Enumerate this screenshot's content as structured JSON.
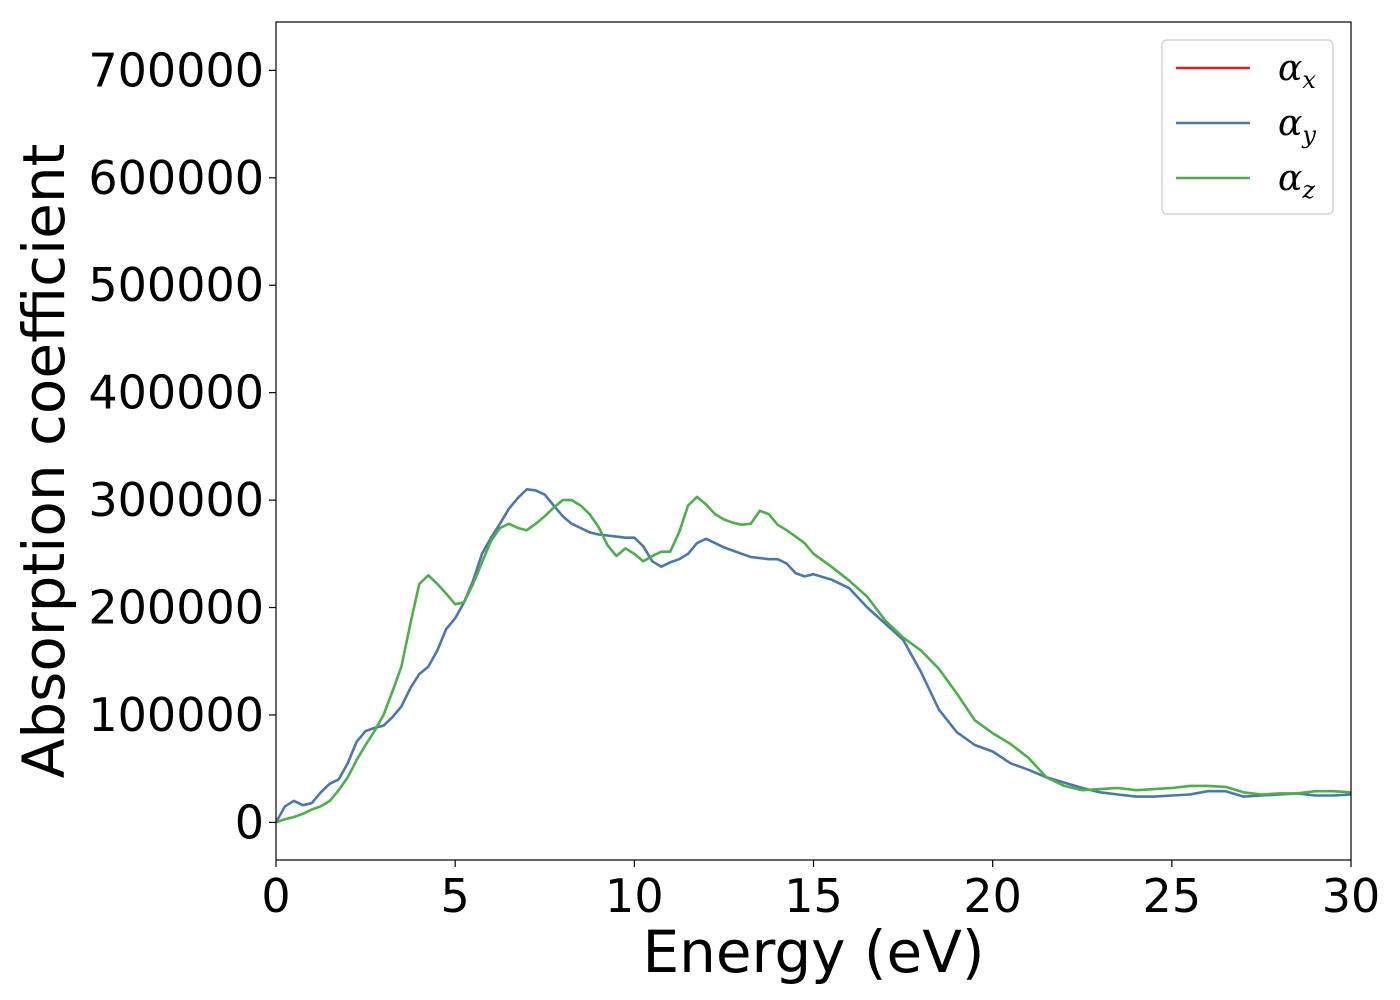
{
  "chart_data": {
    "type": "line",
    "title": "",
    "xlabel": "Energy (eV)",
    "ylabel": "Absorption coefficient",
    "xlim": [
      0,
      30
    ],
    "ylim": [
      -35000,
      745000
    ],
    "xticks": [
      0,
      5,
      10,
      15,
      20,
      25,
      30
    ],
    "xtick_labels": [
      "0",
      "5",
      "10",
      "15",
      "20",
      "25",
      "30"
    ],
    "yticks": [
      0,
      100000,
      200000,
      300000,
      400000,
      500000,
      600000,
      700000
    ],
    "ytick_labels": [
      "0",
      "100000",
      "200000",
      "300000",
      "400000",
      "500000",
      "600000",
      "700000"
    ],
    "grid": false,
    "legend_position": "top-right",
    "x": [
      0,
      0.25,
      0.5,
      0.75,
      1,
      1.25,
      1.5,
      1.75,
      2,
      2.25,
      2.5,
      2.75,
      3,
      3.25,
      3.5,
      3.75,
      4,
      4.25,
      4.5,
      4.75,
      5,
      5.25,
      5.5,
      5.75,
      6,
      6.25,
      6.5,
      6.75,
      7,
      7.25,
      7.5,
      7.75,
      8,
      8.25,
      8.5,
      8.75,
      9,
      9.25,
      9.5,
      9.75,
      10,
      10.25,
      10.5,
      10.75,
      11,
      11.25,
      11.5,
      11.75,
      12,
      12.25,
      12.5,
      12.75,
      13,
      13.25,
      13.5,
      13.75,
      14,
      14.25,
      14.5,
      14.75,
      15,
      15.5,
      16,
      16.5,
      17,
      17.5,
      18,
      18.5,
      19,
      19.5,
      20,
      20.5,
      21,
      21.5,
      22,
      22.5,
      23,
      23.5,
      24,
      24.5,
      25,
      25.5,
      26,
      26.5,
      27,
      27.5,
      28,
      28.5,
      29,
      29.5,
      30
    ],
    "series": [
      {
        "name": "αx",
        "label_base": "α",
        "label_sub": "x",
        "color": "#e41a1c",
        "values": [
          0,
          15000,
          20000,
          16000,
          18000,
          28000,
          36000,
          40000,
          55000,
          75000,
          85000,
          88000,
          90000,
          98000,
          108000,
          125000,
          138000,
          145000,
          160000,
          180000,
          190000,
          205000,
          225000,
          250000,
          265000,
          278000,
          292000,
          302000,
          310000,
          309000,
          305000,
          295000,
          285000,
          278000,
          274000,
          270000,
          268000,
          267000,
          266000,
          265000,
          265000,
          257000,
          243000,
          238000,
          242000,
          245000,
          250000,
          260000,
          264000,
          260000,
          256000,
          253000,
          250000,
          247000,
          246000,
          245000,
          245000,
          241000,
          232000,
          229000,
          231000,
          226000,
          218000,
          200000,
          185000,
          170000,
          140000,
          105000,
          84000,
          72000,
          66000,
          55000,
          49000,
          42000,
          37000,
          32000,
          28000,
          26000,
          24000,
          24000,
          25000,
          26000,
          29000,
          29000,
          24000,
          25000,
          26000,
          27000,
          25000,
          25000,
          26000
        ],
        "show_line": false
      },
      {
        "name": "αy",
        "label_base": "α",
        "label_sub": "y",
        "color": "#4a78ac",
        "values": [
          0,
          15000,
          20000,
          16000,
          18000,
          28000,
          36000,
          40000,
          55000,
          75000,
          85000,
          88000,
          90000,
          98000,
          108000,
          125000,
          138000,
          145000,
          160000,
          180000,
          190000,
          205000,
          225000,
          250000,
          265000,
          278000,
          292000,
          302000,
          310000,
          309000,
          305000,
          295000,
          285000,
          278000,
          274000,
          270000,
          268000,
          267000,
          266000,
          265000,
          265000,
          257000,
          243000,
          238000,
          242000,
          245000,
          250000,
          260000,
          264000,
          260000,
          256000,
          253000,
          250000,
          247000,
          246000,
          245000,
          245000,
          241000,
          232000,
          229000,
          231000,
          226000,
          218000,
          200000,
          185000,
          170000,
          140000,
          105000,
          84000,
          72000,
          66000,
          55000,
          49000,
          42000,
          37000,
          32000,
          28000,
          26000,
          24000,
          24000,
          25000,
          26000,
          29000,
          29000,
          24000,
          25000,
          26000,
          27000,
          25000,
          25000,
          26000
        ]
      },
      {
        "name": "αz",
        "label_base": "α",
        "label_sub": "z",
        "color": "#4daf4a",
        "values": [
          0,
          3000,
          5000,
          8000,
          12000,
          15000,
          20000,
          30000,
          42000,
          58000,
          72000,
          85000,
          100000,
          122000,
          145000,
          185000,
          222000,
          230000,
          222000,
          213000,
          203000,
          205000,
          222000,
          242000,
          262000,
          274000,
          278000,
          274000,
          272000,
          278000,
          285000,
          293000,
          300000,
          300000,
          295000,
          287000,
          275000,
          258000,
          248000,
          255000,
          250000,
          243000,
          248000,
          252000,
          252000,
          270000,
          295000,
          303000,
          296000,
          287000,
          282000,
          279000,
          277000,
          278000,
          290000,
          287000,
          277000,
          272000,
          266000,
          260000,
          250000,
          238000,
          225000,
          210000,
          188000,
          172000,
          160000,
          143000,
          120000,
          95000,
          83000,
          73000,
          60000,
          42000,
          34000,
          30000,
          31000,
          32000,
          30000,
          31000,
          32000,
          34000,
          34000,
          33000,
          28000,
          26000,
          27000,
          27000,
          29000,
          29000,
          28000
        ]
      }
    ]
  }
}
